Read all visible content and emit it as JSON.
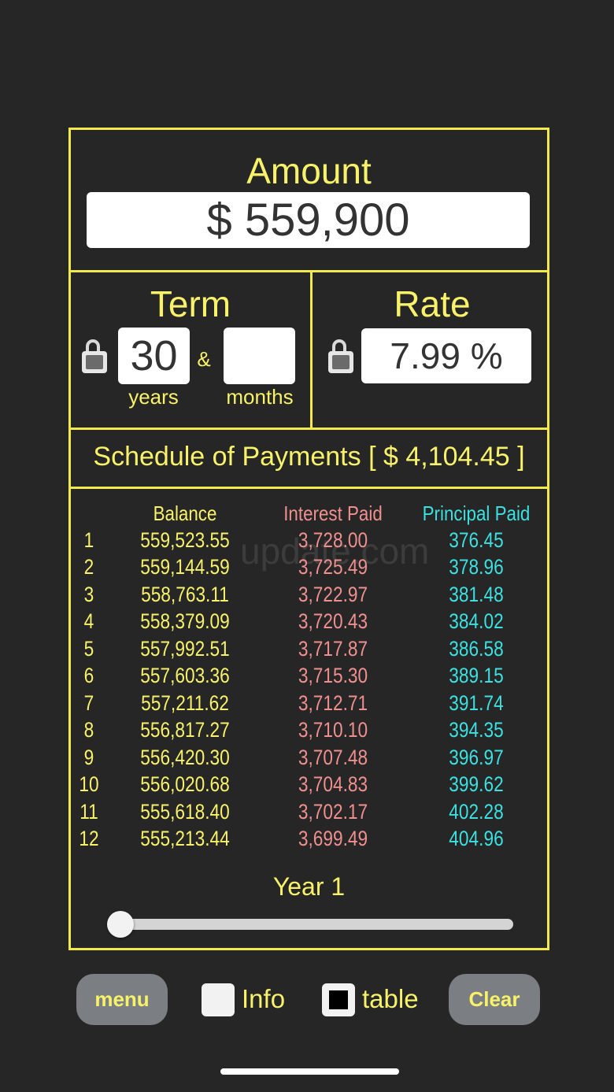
{
  "amount": {
    "title": "Amount",
    "value": "$ 559,900"
  },
  "term": {
    "title": "Term",
    "years": "30",
    "separator": "&",
    "months": "",
    "years_label": "years",
    "months_label": "months"
  },
  "rate": {
    "title": "Rate",
    "value": "7.99 %"
  },
  "schedule": {
    "title": "Schedule of Payments [ $ 4,104.45 ]"
  },
  "table": {
    "headers": {
      "balance": "Balance",
      "interest": "Interest Paid",
      "principal": "Principal Paid"
    },
    "watermark": "update.com",
    "rows": [
      {
        "n": "1",
        "balance": "559,523.55",
        "interest": "3,728.00",
        "principal": "376.45"
      },
      {
        "n": "2",
        "balance": "559,144.59",
        "interest": "3,725.49",
        "principal": "378.96"
      },
      {
        "n": "3",
        "balance": "558,763.11",
        "interest": "3,722.97",
        "principal": "381.48"
      },
      {
        "n": "4",
        "balance": "558,379.09",
        "interest": "3,720.43",
        "principal": "384.02"
      },
      {
        "n": "5",
        "balance": "557,992.51",
        "interest": "3,717.87",
        "principal": "386.58"
      },
      {
        "n": "6",
        "balance": "557,603.36",
        "interest": "3,715.30",
        "principal": "389.15"
      },
      {
        "n": "7",
        "balance": "557,211.62",
        "interest": "3,712.71",
        "principal": "391.74"
      },
      {
        "n": "8",
        "balance": "556,817.27",
        "interest": "3,710.10",
        "principal": "394.35"
      },
      {
        "n": "9",
        "balance": "556,420.30",
        "interest": "3,707.48",
        "principal": "396.97"
      },
      {
        "n": "10",
        "balance": "556,020.68",
        "interest": "3,704.83",
        "principal": "399.62"
      },
      {
        "n": "11",
        "balance": "555,618.40",
        "interest": "3,702.17",
        "principal": "402.28"
      },
      {
        "n": "12",
        "balance": "555,213.44",
        "interest": "3,699.49",
        "principal": "404.96"
      }
    ]
  },
  "year_slider": {
    "label": "Year 1",
    "value": 1,
    "min": 1,
    "max": 30
  },
  "bottom": {
    "menu": "menu",
    "info": "Info",
    "info_checked": false,
    "table": "table",
    "table_checked": true,
    "clear": "Clear"
  },
  "icons": {
    "term_lock": "lock-icon",
    "rate_lock": "lock-icon"
  }
}
